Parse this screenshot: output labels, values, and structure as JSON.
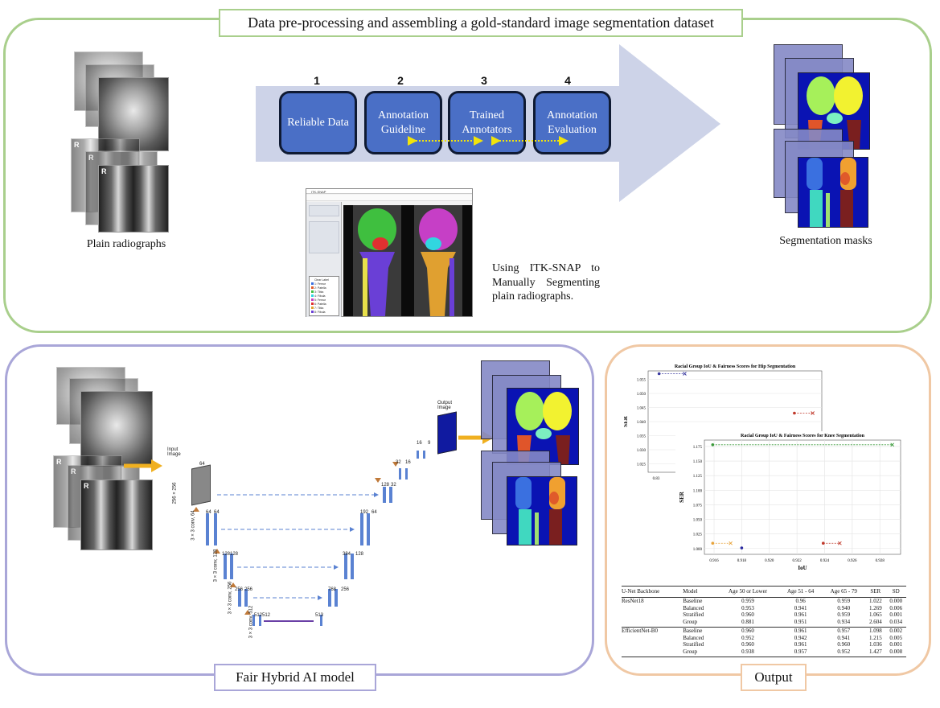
{
  "titles": {
    "top": "Data pre-processing and assembling a gold-standard image segmentation dataset",
    "left": "Fair Hybrid AI model",
    "right": "Output"
  },
  "steps": [
    {
      "num": "1",
      "label": "Reliable Data"
    },
    {
      "num": "2",
      "label": "Annotation Guideline"
    },
    {
      "num": "3",
      "label": "Trained Annotators"
    },
    {
      "num": "4",
      "label": "Annotation Evaluation"
    }
  ],
  "captions": {
    "plain": "Plain radiographs",
    "masks": "Segmentation masks",
    "itk_note": "Using ITK-SNAP to Manually Segmenting plain radiographs."
  },
  "xray_marker": "R",
  "itk": {
    "title": "ITK-SNAP",
    "labels": [
      "Clear Label",
      "1: Femur",
      "2: Patella",
      "3: Tibia",
      "4: Fibula",
      "5: Femur",
      "6: Patella",
      "7: Tibia",
      "8: Fibula"
    ]
  },
  "unet": {
    "input_label": "Input Image",
    "output_label": "Output Image",
    "input_size": "256 × 256",
    "channels": [
      "64",
      "64",
      "64",
      "128",
      "128",
      "256",
      "256",
      "512",
      "512",
      "513",
      "768",
      "256",
      "384",
      "128",
      "192",
      "64",
      "128",
      "32",
      "32",
      "16",
      "16",
      "9"
    ],
    "conv_labels": [
      "3 × 3 conv, 64",
      "3 × 3 conv, 128",
      "3 × 3 conv, 256",
      "3 × 3 conv, 512"
    ]
  },
  "chart_data": [
    {
      "type": "scatter",
      "title": "Racial Group IoU & Fairness Scores for Hip Segmentation",
      "xlabel": "",
      "ylabel": "SER",
      "x_ticks": [
        "0.83",
        "0"
      ],
      "y_ticks": [
        "1.055",
        "1.050",
        "1.045",
        "1.040",
        "1.035",
        "1.030",
        "1.025"
      ],
      "ylim": [
        1.022,
        1.058
      ],
      "series": [
        {
          "color": "#3a3aa0",
          "points": [
            [
              0.826,
              1.057
            ],
            [
              0.84,
              1.057
            ]
          ]
        },
        {
          "color": "#c0392b",
          "points": [
            [
              0.9,
              1.043
            ],
            [
              0.91,
              1.043
            ]
          ]
        }
      ],
      "grid": true
    },
    {
      "type": "scatter",
      "title": "Racial Group IoU & Fairness Scores for Knee Segmentation",
      "xlabel": "IoU",
      "ylabel": "SER",
      "x_ticks": [
        "0.916",
        "0.918",
        "0.920",
        "0.922",
        "0.924",
        "0.926",
        "0.928"
      ],
      "y_ticks": [
        "1.175",
        "1.150",
        "1.125",
        "1.100",
        "1.075",
        "1.050",
        "1.025",
        "1.000"
      ],
      "xlim": [
        0.9153,
        0.9295
      ],
      "ylim": [
        0.99,
        1.186
      ],
      "series": [
        {
          "color": "#3a9a3a",
          "points": [
            [
              0.9159,
              1.178
            ],
            [
              0.9289,
              1.178
            ]
          ]
        },
        {
          "color": "#e8a33a",
          "points": [
            [
              0.9159,
              1.009
            ],
            [
              0.9172,
              1.009
            ]
          ]
        },
        {
          "color": "#2a2aa0",
          "points": [
            [
              0.918,
              1.001
            ]
          ]
        },
        {
          "color": "#c0392b",
          "points": [
            [
              0.9239,
              1.009
            ],
            [
              0.9251,
              1.009
            ]
          ]
        }
      ],
      "grid": true
    },
    {
      "type": "table",
      "headers": [
        "U-Net Backbone",
        "Model",
        "Age 50 or Lower",
        "Age 51 - 64",
        "Age 65 - 79",
        "SER",
        "SD"
      ],
      "rows": [
        [
          "ResNet18",
          "Baseline",
          "0.959",
          "0.96",
          "0.959",
          "1.022",
          "0.000"
        ],
        [
          "",
          "Balanced",
          "0.953",
          "0.941",
          "0.940",
          "1.269",
          "0.006"
        ],
        [
          "",
          "Stratified",
          "0.960",
          "0.961",
          "0.959",
          "1.065",
          "0.001"
        ],
        [
          "",
          "Group",
          "0.881",
          "0.951",
          "0.934",
          "2.604",
          "0.034"
        ],
        [
          "EfficientNet-B0",
          "Baseline",
          "0.960",
          "0.961",
          "0.957",
          "1.098",
          "0.002"
        ],
        [
          "",
          "Balanced",
          "0.952",
          "0.942",
          "0.941",
          "1.215",
          "0.005"
        ],
        [
          "",
          "Stratified",
          "0.960",
          "0.961",
          "0.960",
          "1.036",
          "0.001"
        ],
        [
          "",
          "Group",
          "0.938",
          "0.957",
          "0.952",
          "1.427",
          "0.008"
        ]
      ]
    }
  ]
}
